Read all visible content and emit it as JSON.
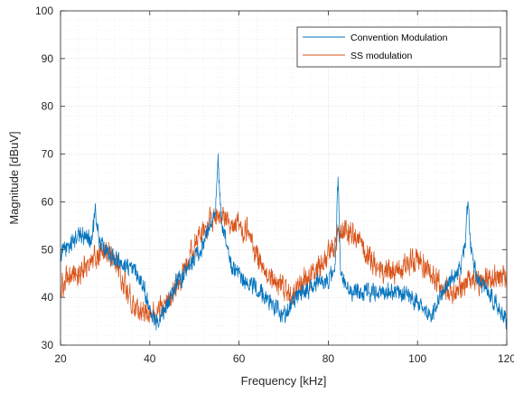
{
  "chart_data": {
    "type": "line",
    "title": "",
    "xlabel": "Frequency [kHz]",
    "ylabel": "Magnitude [dBuV]",
    "xlim": [
      20,
      120
    ],
    "ylim": [
      30,
      100
    ],
    "xticks": [
      20,
      40,
      60,
      80,
      100,
      120
    ],
    "yticks": [
      30,
      40,
      50,
      60,
      70,
      80,
      90,
      100
    ],
    "xtick_labels": [
      "20",
      "40",
      "60",
      "80",
      "100",
      "120"
    ],
    "ytick_labels": [
      "30",
      "40",
      "50",
      "60",
      "70",
      "80",
      "90",
      "100"
    ],
    "grid": "dotted major and minor",
    "legend_position": "top-right",
    "series": [
      {
        "name": "Convention Modulation",
        "color": "#0072BD",
        "x": [
          20,
          22,
          24,
          26,
          27,
          27.8,
          28.6,
          30,
          32,
          34,
          36,
          38,
          40,
          41,
          42,
          44,
          46,
          48,
          50,
          52,
          54,
          54.8,
          55.3,
          55.8,
          56.5,
          58,
          60,
          62,
          64,
          66,
          68,
          70,
          72,
          74,
          76,
          78,
          80,
          81.5,
          82.2,
          82.7,
          83.3,
          84,
          86,
          88,
          90,
          92,
          94,
          96,
          98,
          100,
          102,
          103,
          104,
          106,
          108,
          110,
          110.8,
          111.3,
          111.8,
          112.5,
          114,
          116,
          118,
          120
        ],
        "y": [
          49,
          51,
          53,
          53,
          52,
          58,
          52,
          50,
          48,
          47,
          46,
          44,
          38,
          35,
          35.5,
          39,
          43,
          45,
          48,
          51,
          57,
          60,
          68.5,
          59,
          54,
          47,
          44,
          43,
          42,
          40,
          38,
          36,
          39,
          41,
          42,
          43,
          44,
          46,
          65,
          47,
          43,
          42,
          41,
          41,
          41,
          41,
          41,
          41,
          40,
          39,
          37,
          36,
          38,
          42,
          44,
          47,
          52,
          61,
          52,
          47,
          43,
          41,
          38,
          35
        ]
      },
      {
        "name": "SS modulation",
        "color": "#D95319",
        "x": [
          20,
          22,
          24,
          26,
          28,
          30,
          32,
          34,
          36,
          38,
          40,
          42,
          44,
          46,
          48,
          50,
          52,
          54,
          56,
          58,
          60,
          62,
          64,
          66,
          68,
          70,
          72,
          74,
          76,
          78,
          80,
          82,
          84,
          86,
          88,
          90,
          92,
          94,
          96,
          98,
          100,
          102,
          104,
          106,
          108,
          110,
          112,
          114,
          116,
          118,
          120
        ],
        "y": [
          42,
          44,
          45,
          47,
          49,
          50,
          48,
          44,
          39,
          37,
          36,
          37,
          39,
          42,
          46,
          51,
          54,
          56,
          58,
          55,
          55,
          54,
          49,
          46,
          43,
          42,
          41,
          43,
          44,
          46,
          49,
          52,
          54,
          53,
          50,
          47,
          46,
          45,
          46,
          47,
          48,
          46,
          44,
          42,
          41,
          42,
          44,
          43,
          44,
          44,
          44
        ]
      }
    ]
  }
}
